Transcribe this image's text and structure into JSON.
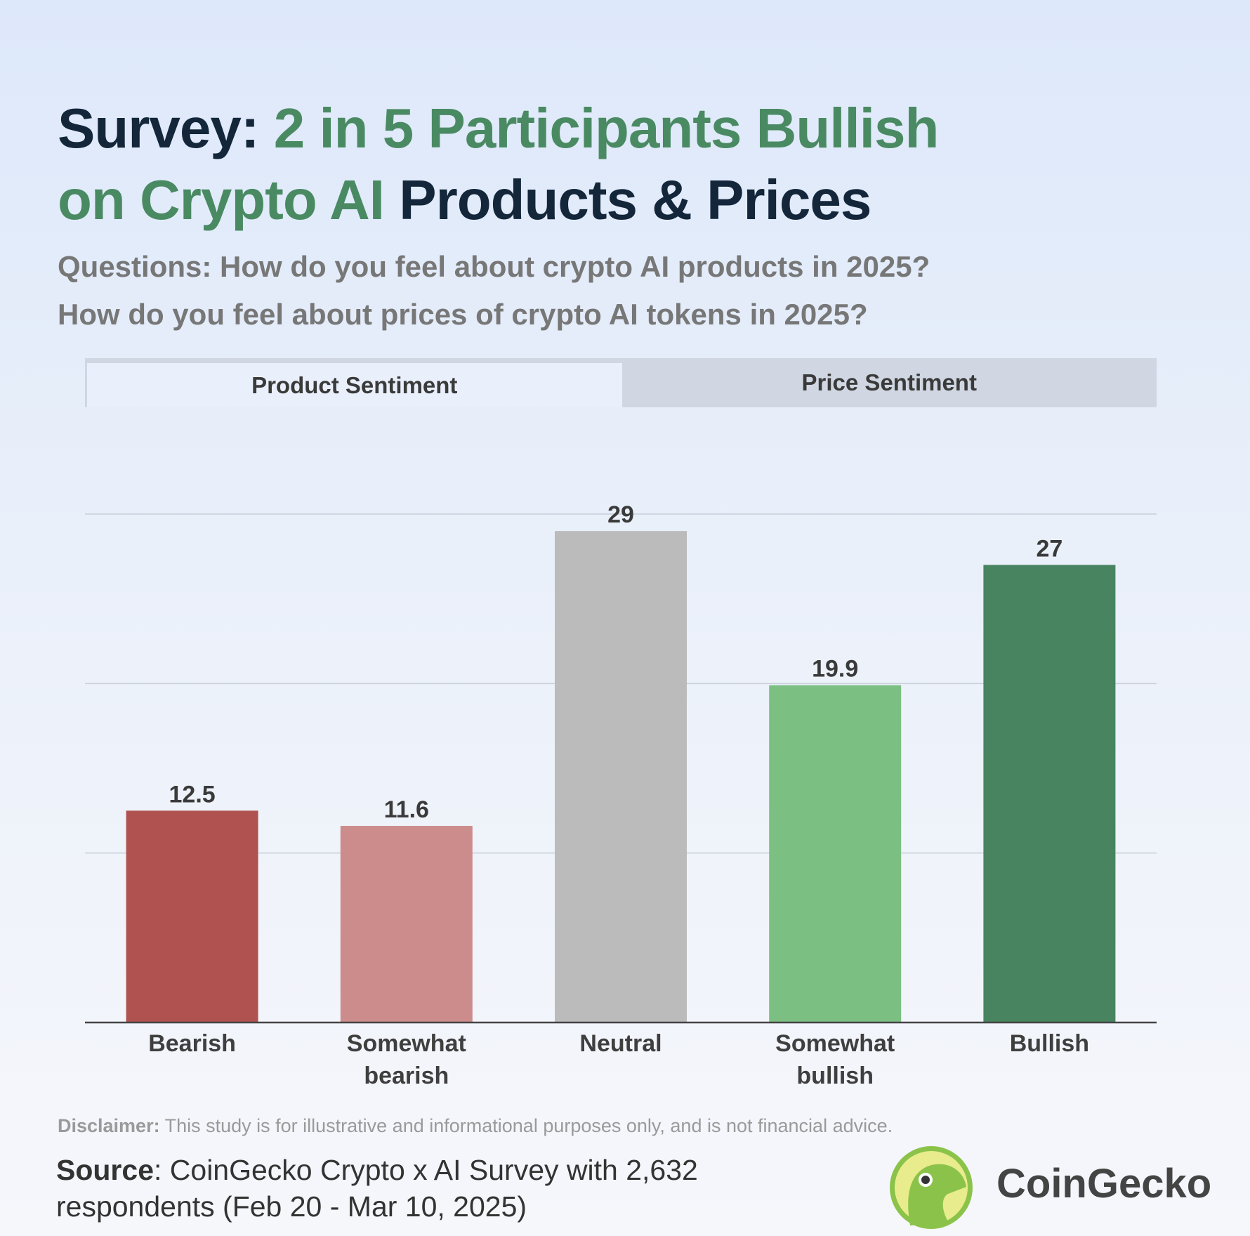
{
  "header": {
    "title": [
      "Survey:",
      "2 in 5 Participants Bullish",
      "on Crypto AI",
      "Products & Prices"
    ],
    "subtitle": [
      "Questions: How do you feel about crypto AI products in 2025?",
      "How do you feel about prices of crypto AI tokens in 2025?"
    ]
  },
  "tabs": [
    "Product Sentiment",
    "Price Sentiment"
  ],
  "chart_data": {
    "type": "bar",
    "categories": [
      "Bearish",
      "Somewhat bearish",
      "Neutral",
      "Somewhat bullish",
      "Bullish"
    ],
    "values": [
      12.5,
      11.6,
      29,
      19.9,
      27
    ],
    "colors": [
      "#b05350",
      "#cd8c8c",
      "#bbbbbb",
      "#7bc082",
      "#47845f"
    ],
    "ylim": [
      0,
      30
    ],
    "yticks": [
      0,
      10,
      20,
      30
    ],
    "grid": true
  },
  "footer": {
    "disclaimer_label": "Disclaimer:",
    "disclaimer": "This study is for illustrative and informational purposes only, and is not financial advice.",
    "source_label": "Source",
    "source": ": CoinGecko Crypto x AI Survey with 2,632 respondents (Feb 20 - Mar 10, 2025)",
    "brand": "CoinGecko"
  }
}
